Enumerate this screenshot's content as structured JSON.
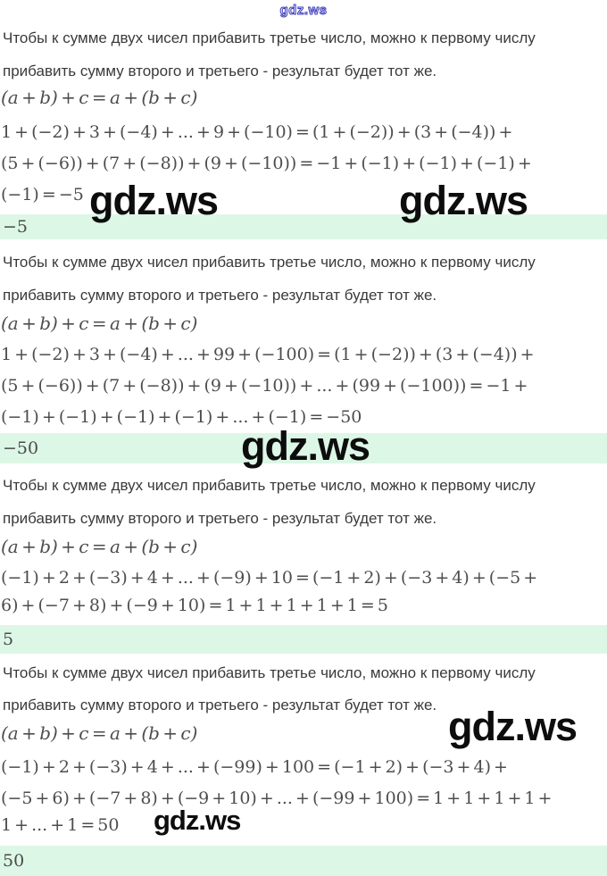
{
  "page": {
    "watermark_top": "gdz.ws",
    "watermark_large": "gdz.ws"
  },
  "colors": {
    "answer_band_bg": "#ddf7e7",
    "body_text": "#3a3a3a",
    "math_text": "#4d4d4d",
    "watermark_black": "#0d0d0d",
    "watermark_blue": "#3d3dbd"
  },
  "rule": {
    "line1": "Чтобы к сумме двух чисел прибавить третье число, можно к первому числу",
    "line2": "прибавить сумму второго и третьего - результат будет тот же.",
    "formula": "(a + b) + c = a + (b + c)"
  },
  "blocks": [
    {
      "lines": [
        "1 + (−2) + 3 + (−4) + ... + 9 + (−10) = (1 + (−2)) + (3 + (−4)) +",
        "(5 + (−6)) + (7 + (−8)) + (9 + (−10)) = −1 + (−1) + (−1) + (−1) +",
        "(−1) = −5"
      ],
      "answer": "−5"
    },
    {
      "lines": [
        "1 + (−2) + 3 + (−4) + ... + 99 + (−100) = (1 + (−2)) + (3 + (−4)) +",
        "(5 + (−6)) + (7 + (−8)) + (9 + (−10)) + ... + (99 + (−100)) = −1 +",
        "(−1) + (−1) + (−1) + (−1) + ... + (−1) = −50"
      ],
      "answer": "−50"
    },
    {
      "lines": [
        "(−1) + 2 + (−3) + 4 + ... + (−9) + 10 = (−1 + 2) + (−3 + 4) + (−5 +",
        "6) + (−7 + 8) + (−9 + 10) = 1 + 1 + 1 + 1 + 1 = 5"
      ],
      "answer": "5"
    },
    {
      "lines": [
        "(−1) + 2 + (−3) + 4 + ... + (−99) + 100 = (−1 + 2) + (−3 + 4) +",
        "(−5 + 6) + (−7 + 8) + (−9 + 10) + ... + (−99 + 100) = 1 + 1 + 1 + 1 +",
        "1 + ... + 1 = 50"
      ],
      "answer": "50"
    }
  ]
}
